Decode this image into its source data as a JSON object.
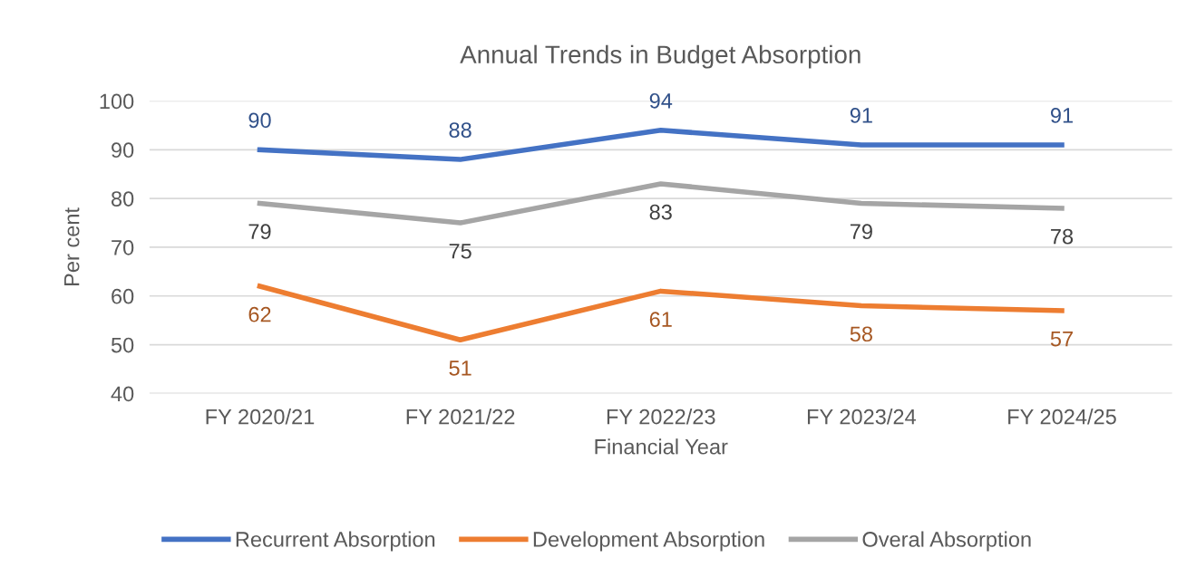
{
  "chart_data": {
    "type": "line",
    "title": "Annual Trends in Budget Absorption",
    "xlabel": "Financial Year",
    "ylabel": "Per cent",
    "categories": [
      "FY 2020/21",
      "FY 2021/22",
      "FY 2022/23",
      "FY 2023/24",
      "FY 2024/25"
    ],
    "series": [
      {
        "name": "Recurrent Absorption",
        "color": "#4472c4",
        "values": [
          90,
          88,
          94,
          91,
          91
        ]
      },
      {
        "name": "Development Absorption",
        "color": "#ed7d31",
        "values": [
          62,
          51,
          61,
          58,
          57
        ]
      },
      {
        "name": "Overal Absorption",
        "color": "#a5a5a5",
        "values": [
          79,
          75,
          83,
          79,
          78
        ]
      }
    ],
    "ylim": [
      40,
      100
    ],
    "yticks": [
      40,
      50,
      60,
      70,
      80,
      90,
      100
    ],
    "grid": "y",
    "legend": "bottom",
    "data_labels": true,
    "marker": "none",
    "line_style": "solid"
  }
}
